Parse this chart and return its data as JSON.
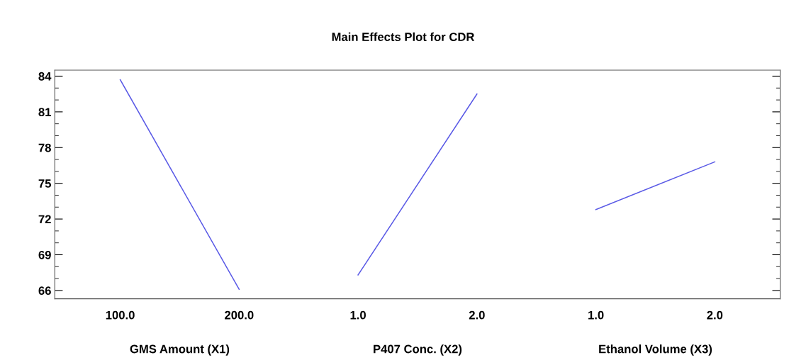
{
  "chart_data": {
    "type": "line",
    "title": "Main Effects Plot for CDR",
    "categories": [
      "100.0",
      "200.0",
      "1.0",
      "2.0",
      "1.0",
      "2.0"
    ],
    "series": [
      {
        "color": "#5a5ae6",
        "values": [
          83.7,
          66.1,
          null,
          null,
          null,
          null
        ]
      },
      {
        "color": "#5a5ae6",
        "values": [
          null,
          null,
          67.3,
          82.5,
          null,
          null
        ]
      },
      {
        "color": "#5a5ae6",
        "values": [
          null,
          null,
          null,
          null,
          72.8,
          76.8
        ]
      }
    ],
    "annotations": [
      "GMS Amount (X1)",
      "P407 Conc. (X2)",
      "Ethanol Volume (X3)"
    ],
    "ylim": [
      65.3,
      84.5
    ],
    "yticks": [
      66,
      69,
      72,
      75,
      78,
      81,
      84
    ],
    "grid": false,
    "legend": false,
    "marker": "none",
    "line_style": "solid"
  }
}
